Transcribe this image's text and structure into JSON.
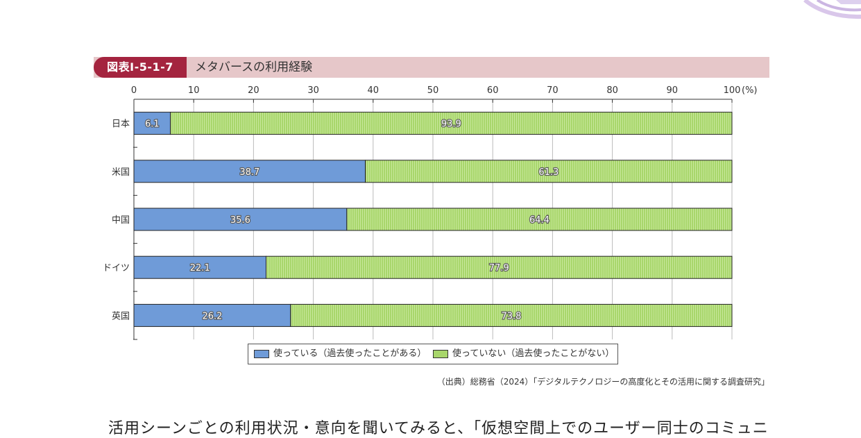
{
  "figure": {
    "tag": "図表Ⅰ-5-1-7",
    "title": "メタバースの利用経験"
  },
  "chart_data": {
    "type": "bar",
    "orientation": "horizontal",
    "stacked": true,
    "categories": [
      "日本",
      "米国",
      "中国",
      "ドイツ",
      "英国"
    ],
    "series": [
      {
        "name": "使っている（過去使ったことがある）",
        "values": [
          6.1,
          38.7,
          35.6,
          22.1,
          26.2
        ],
        "color": "#6f9bd8"
      },
      {
        "name": "使っていない（過去使ったことがない）",
        "values": [
          93.9,
          61.3,
          64.4,
          77.9,
          73.8
        ],
        "color": "#a8d66b"
      }
    ],
    "xlim": [
      0,
      100
    ],
    "xticks": [
      0,
      10,
      20,
      30,
      40,
      50,
      60,
      70,
      80,
      90,
      100
    ],
    "x_unit": "(%)",
    "grid": true,
    "legend_position": "bottom"
  },
  "source": "（出典）総務省（2024）「デジタルテクノロジーの高度化とその活用に関する調査研究」",
  "body_text": "活用シーンごとの利用状況・意向を聞いてみると、「仮想空間上でのユーザー同士のコミュニ"
}
